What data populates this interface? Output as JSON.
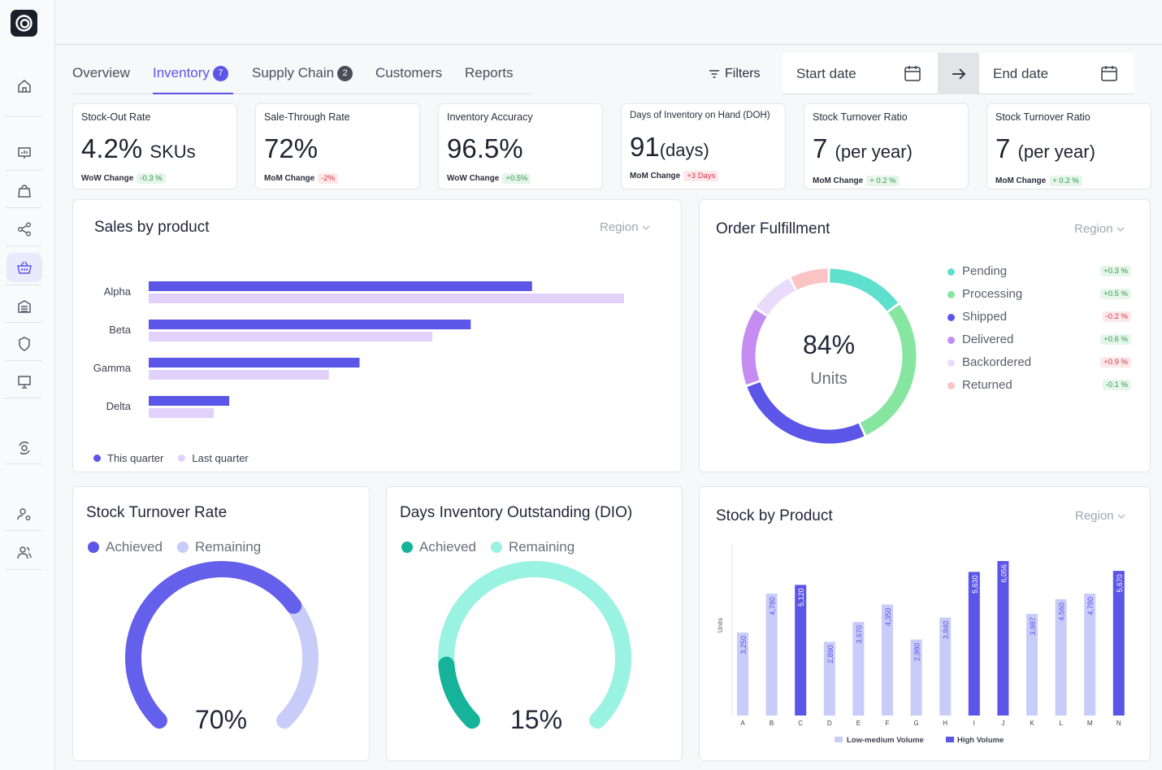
{
  "tabs": [
    {
      "label": "Overview"
    },
    {
      "label": "Inventory",
      "badge": "7"
    },
    {
      "label": "Supply Chain",
      "badge": "2"
    },
    {
      "label": "Customers"
    },
    {
      "label": "Reports"
    }
  ],
  "toolbar": {
    "filters_label": "Filters",
    "start_date": "Start date",
    "end_date": "End date"
  },
  "kpis": [
    {
      "label": "Stock-Out Rate",
      "value": "4.2%",
      "unit": "SKUs",
      "change_label": "WoW Change",
      "change": "-0.3 %",
      "change_type": "pos"
    },
    {
      "label": "Sale-Through Rate",
      "value": "72%",
      "unit": "",
      "change_label": "MoM Change",
      "change": "-2%",
      "change_type": "neg"
    },
    {
      "label": "Inventory Accuracy",
      "value": "96.5%",
      "unit": "",
      "change_label": "WoW Change",
      "change": "+0.5%",
      "change_type": "pos"
    },
    {
      "label": "Days of Inventory on Hand (DOH)",
      "value": "91",
      "unit": "(days)",
      "change_label": "MoM Change",
      "change": "+3 Days",
      "change_type": "neg"
    },
    {
      "label": "Stock Turnover Ratio",
      "value": "7",
      "unit": "(per year)",
      "change_label": "MoM Change",
      "change": "+ 0.2 %",
      "change_type": "pos"
    },
    {
      "label": "Stock Turnover Ratio",
      "value": "7",
      "unit": "(per year)",
      "change_label": "MoM Change",
      "change": "+ 0.2 %",
      "change_type": "pos"
    }
  ],
  "sales": {
    "title": "Sales by product",
    "region": "Region",
    "legend_this": "This quarter",
    "legend_last": "Last quarter"
  },
  "fulfillment": {
    "title": "Order Fulfillment",
    "region": "Region",
    "center_value": "84%",
    "center_label": "Units",
    "items": [
      {
        "name": "Pending",
        "change": "+0.3 %",
        "type": "pos",
        "color": "#5fe0cf"
      },
      {
        "name": "Processing",
        "change": "+0.5 %",
        "type": "pos",
        "color": "#86e6a0"
      },
      {
        "name": "Shipped",
        "change": "-0.2 %",
        "type": "neg",
        "color": "#5b55e8"
      },
      {
        "name": "Delivered",
        "change": "+0.6 %",
        "type": "pos",
        "color": "#c58df2"
      },
      {
        "name": "Backordered",
        "change": "+0.9 %",
        "type": "neg",
        "color": "#e9dcfb"
      },
      {
        "name": "Returned",
        "change": "-0.1 %",
        "type": "pos",
        "color": "#fbc4c4"
      }
    ]
  },
  "stock_turnover": {
    "title": "Stock Turnover Rate",
    "achieved": "Achieved",
    "remaining": "Remaining",
    "value": "70%",
    "fraction": 0.7
  },
  "dio": {
    "title": "Days Inventory Outstanding (DIO)",
    "achieved": "Achieved",
    "remaining": "Remaining",
    "value": "15%",
    "fraction": 0.15
  },
  "stock_by_product": {
    "title": "Stock by Product",
    "region": "Region"
  },
  "chart_data": [
    {
      "type": "bar",
      "orientation": "horizontal",
      "categories": [
        "Alpha",
        "Beta",
        "Gamma",
        "Delta"
      ],
      "series": [
        {
          "name": "This quarter",
          "values": [
            100,
            84,
            55,
            21
          ],
          "color": "#5b55e8"
        },
        {
          "name": "Last quarter",
          "values": [
            124,
            74,
            47,
            17
          ],
          "color": "#e2d2fb"
        }
      ],
      "xlim": [
        0,
        130
      ],
      "legend": "bottom-left"
    },
    {
      "type": "pie",
      "donut": true,
      "labels": [
        "Pending",
        "Processing",
        "Shipped",
        "Delivered",
        "Backordered",
        "Returned"
      ],
      "values": [
        14,
        27,
        25,
        14,
        8,
        7
      ]
    },
    {
      "type": "bar",
      "categories": [
        "A",
        "B",
        "C",
        "D",
        "E",
        "F",
        "G",
        "H",
        "I",
        "J",
        "K",
        "L",
        "M",
        "N"
      ],
      "values": [
        3250,
        4780,
        5120,
        2890,
        3670,
        4350,
        2980,
        3840,
        5630,
        6056,
        3987,
        4560,
        4780,
        5670
      ],
      "volume": [
        "low",
        "low",
        "high",
        "low",
        "low",
        "low",
        "low",
        "low",
        "high",
        "high",
        "low",
        "low",
        "low",
        "high"
      ],
      "ylabel": "Units",
      "series_names": [
        "Low-medium Volume",
        "High Volume"
      ],
      "colors": {
        "low": "#c8ccf8",
        "high": "#5b55e8"
      },
      "ylim": [
        0,
        6300
      ],
      "legend": "bottom-center"
    }
  ]
}
